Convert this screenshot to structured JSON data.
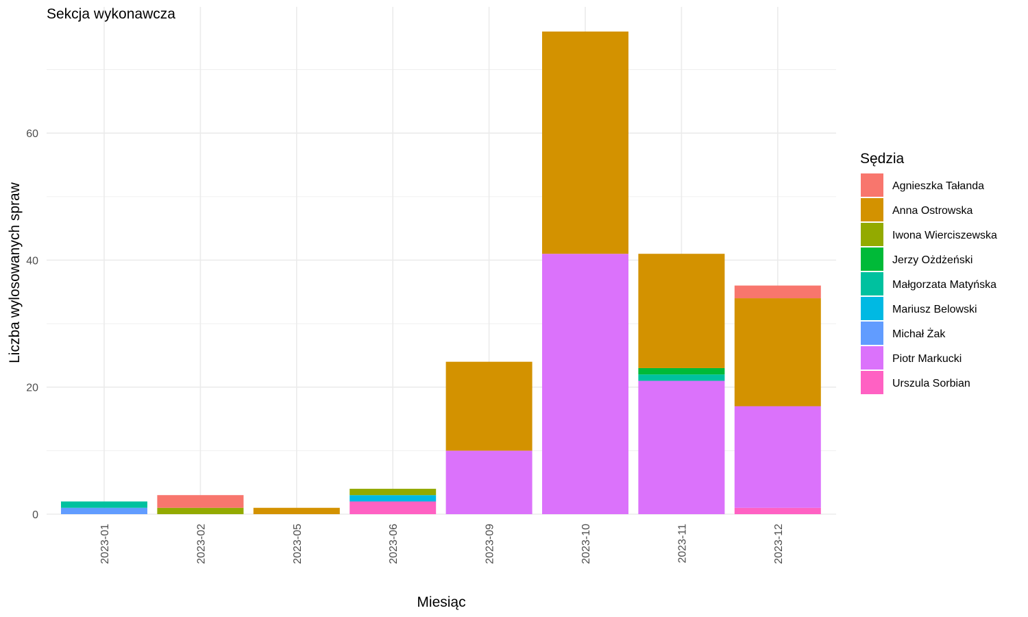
{
  "chart_data": {
    "type": "bar",
    "stacked": true,
    "title": "Sekcja wykonawcza",
    "xlabel": "Miesiąc",
    "ylabel": "Liczba wylosowanych spraw",
    "ylim": [
      0,
      80
    ],
    "yticks": [
      0,
      20,
      40,
      60
    ],
    "grid": true,
    "legend_title": "Sędzia",
    "legend_position": "right",
    "categories": [
      "2023-01",
      "2023-02",
      "2023-05",
      "2023-06",
      "2023-09",
      "2023-10",
      "2023-11",
      "2023-12"
    ],
    "series": [
      {
        "name": "Agnieszka Tałanda",
        "color": "#F8766D",
        "values": [
          0,
          2,
          0,
          0,
          0,
          0,
          0,
          2
        ]
      },
      {
        "name": "Anna Ostrowska",
        "color": "#D39200",
        "values": [
          0,
          0,
          1,
          0,
          14,
          35,
          18,
          17
        ]
      },
      {
        "name": "Iwona Wierciszewska",
        "color": "#93AA00",
        "values": [
          0,
          1,
          0,
          1,
          0,
          0,
          0,
          0
        ]
      },
      {
        "name": "Jerzy Ożdżeński",
        "color": "#00BA38",
        "values": [
          0,
          0,
          0,
          0,
          0,
          0,
          1,
          0
        ]
      },
      {
        "name": "Małgorzata Matyńska",
        "color": "#00C19F",
        "values": [
          1,
          0,
          0,
          0,
          0,
          0,
          1,
          0
        ]
      },
      {
        "name": "Mariusz Belowski",
        "color": "#00B9E3",
        "values": [
          0,
          0,
          0,
          1,
          0,
          0,
          0,
          0
        ]
      },
      {
        "name": "Michał Żak",
        "color": "#619CFF",
        "values": [
          1,
          0,
          0,
          0,
          0,
          0,
          0,
          0
        ]
      },
      {
        "name": "Piotr Markucki",
        "color": "#DB72FB",
        "values": [
          0,
          0,
          0,
          0,
          10,
          41,
          21,
          16
        ]
      },
      {
        "name": "Urszula Sorbian",
        "color": "#FF61C3",
        "values": [
          0,
          0,
          0,
          2,
          0,
          0,
          0,
          1
        ]
      }
    ]
  }
}
